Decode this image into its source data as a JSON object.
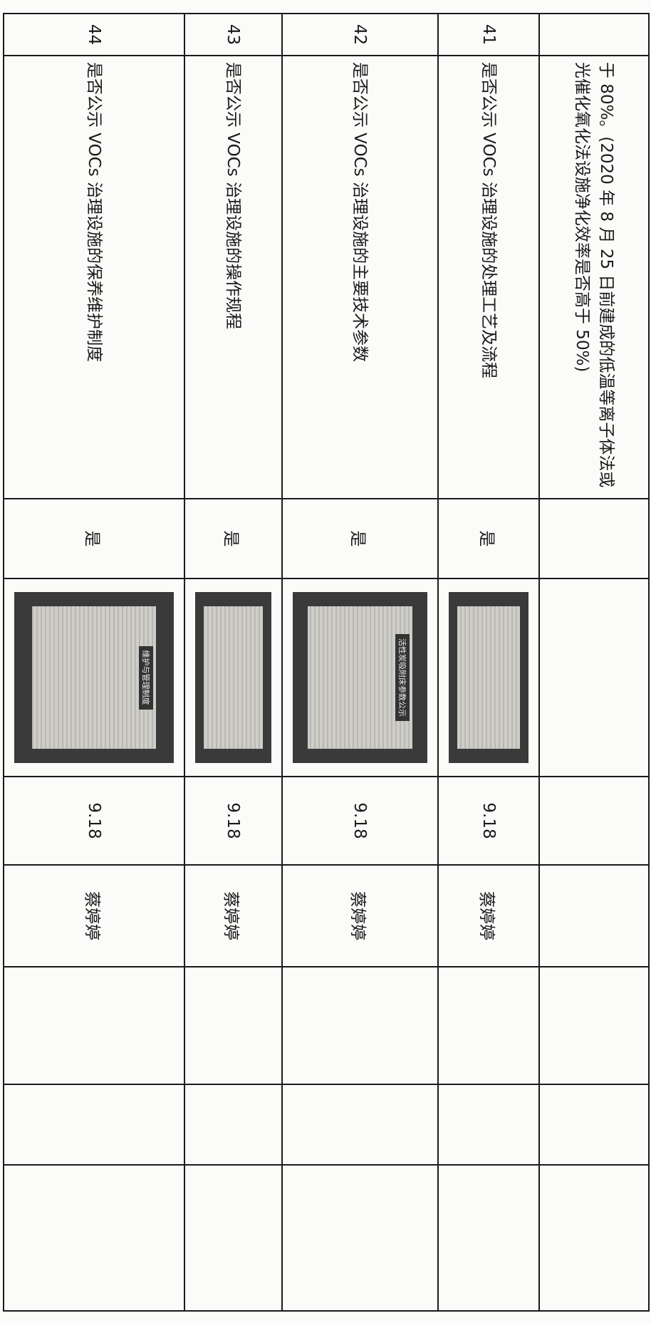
{
  "continued_text": "于 80%。(2020 年 8 月 25 日前建成的低温等离子体法或光催化氧化法设施净化效率是否高于 50%)",
  "rows": [
    {
      "number": "41",
      "item": "是否公示 VOCs 治理设施的处理工艺及流程",
      "answer": "是",
      "photo_caption": "",
      "date": "9.18",
      "person": "蔡婷婷"
    },
    {
      "number": "42",
      "item": "是否公示 VOCs 治理设施的主要技术参数",
      "answer": "是",
      "photo_caption": "活性炭吸附床参数公示",
      "date": "9.18",
      "person": "蔡婷婷"
    },
    {
      "number": "43",
      "item": "是否公示 VOCs 治理设施的操作规程",
      "answer": "是",
      "photo_caption": "",
      "date": "9.18",
      "person": "蔡婷婷"
    },
    {
      "number": "44",
      "item": "是否公示 VOCs 治理设施的保养维护制度",
      "answer": "是",
      "photo_caption": "维护与管理制度",
      "date": "9.18",
      "person": "蔡婷婷"
    }
  ]
}
